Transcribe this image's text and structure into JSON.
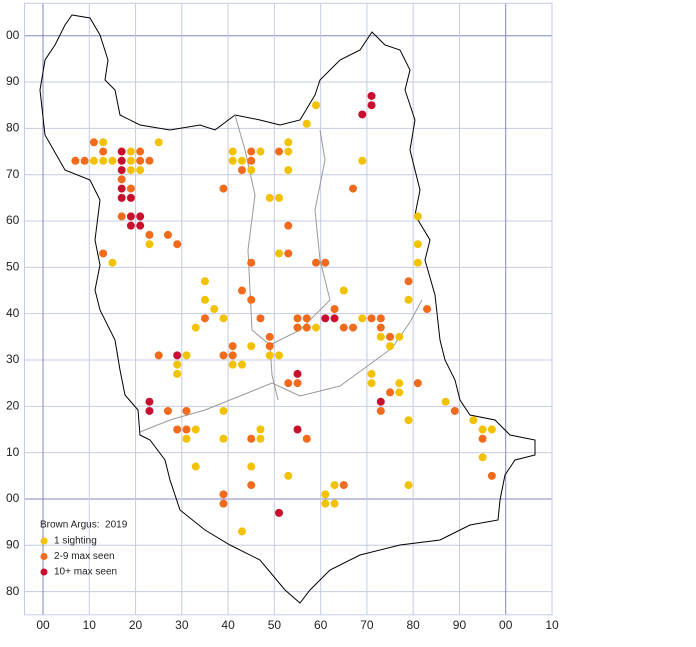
{
  "chart_data": {
    "type": "scatter",
    "title": "Brown Argus:  2019",
    "xlim": [
      -4,
      110
    ],
    "ylim": [
      75,
      207
    ],
    "xticks": [
      {
        "value": 0,
        "label": "00"
      },
      10,
      20,
      30,
      40,
      50,
      60,
      70,
      80,
      90,
      {
        "value": 100,
        "label": "00"
      },
      {
        "value": 110,
        "label": "10"
      }
    ],
    "yticks": [
      80,
      90,
      {
        "value": 100,
        "label": "00"
      },
      {
        "value": 110,
        "label": "10"
      },
      {
        "value": 120,
        "label": "20"
      },
      {
        "value": 130,
        "label": "30"
      },
      {
        "value": 140,
        "label": "40"
      },
      {
        "value": 150,
        "label": "50"
      },
      {
        "value": 160,
        "label": "60"
      },
      {
        "value": 170,
        "label": "70"
      },
      {
        "value": 180,
        "label": "80"
      },
      {
        "value": 190,
        "label": "90"
      },
      {
        "value": 200,
        "label": "00"
      }
    ],
    "grid": true,
    "legend": "bottom-left",
    "series": [
      {
        "name": "1 sighting",
        "color": "#f2c200",
        "x": [
          59,
          57,
          13,
          25,
          11,
          13,
          15,
          19,
          19,
          19,
          21,
          41,
          41,
          43,
          45,
          47,
          53,
          53,
          53,
          49,
          51,
          69,
          81,
          81,
          81,
          51,
          15,
          23,
          35,
          35,
          37,
          39,
          33,
          65,
          55,
          59,
          69,
          73,
          77,
          75,
          79,
          41,
          43,
          45,
          49,
          51,
          29,
          29,
          31,
          71,
          71,
          77,
          77,
          79,
          87,
          93,
          95,
          97,
          95,
          39,
          39,
          47,
          47,
          31,
          33,
          33,
          45,
          53,
          63,
          61,
          61,
          63,
          79,
          43
        ],
        "values": [
          185,
          181,
          177,
          177,
          173,
          173,
          173,
          175,
          173,
          171,
          171,
          175,
          173,
          173,
          171,
          175,
          177,
          175,
          171,
          165,
          165,
          173,
          161,
          155,
          151,
          153,
          151,
          155,
          147,
          143,
          141,
          139,
          137,
          145,
          137,
          137,
          139,
          135,
          135,
          133,
          143,
          129,
          129,
          133,
          131,
          131,
          129,
          127,
          131,
          127,
          125,
          125,
          123,
          117,
          121,
          117,
          115,
          115,
          109,
          119,
          113,
          115,
          113,
          113,
          115,
          107,
          107,
          105,
          103,
          101,
          99,
          99,
          103,
          93
        ]
      },
      {
        "name": "2-9 max seen",
        "color": "#f26a1b",
        "x": [
          11,
          13,
          7,
          9,
          21,
          23,
          21,
          17,
          19,
          17,
          23,
          27,
          29,
          13,
          45,
          45,
          43,
          51,
          39,
          67,
          53,
          53,
          59,
          61,
          45,
          79,
          83,
          43,
          45,
          35,
          47,
          55,
          57,
          55,
          57,
          63,
          65,
          67,
          71,
          73,
          73,
          75,
          49,
          49,
          41,
          41,
          39,
          25,
          53,
          55,
          81,
          75,
          73,
          27,
          31,
          29,
          31,
          45,
          57,
          89,
          95,
          97,
          45,
          65,
          39,
          39
        ],
        "values": [
          177,
          175,
          173,
          173,
          175,
          173,
          173,
          169,
          167,
          161,
          157,
          157,
          155,
          153,
          175,
          173,
          171,
          175,
          167,
          167,
          159,
          153,
          151,
          151,
          151,
          147,
          141,
          145,
          143,
          139,
          139,
          139,
          139,
          137,
          137,
          141,
          137,
          137,
          139,
          139,
          137,
          135,
          135,
          133,
          133,
          131,
          131,
          131,
          125,
          125,
          125,
          123,
          119,
          119,
          119,
          115,
          115,
          113,
          113,
          119,
          113,
          105,
          103,
          103,
          101,
          99
        ]
      },
      {
        "name": "10+ max seen",
        "color": "#c8102e",
        "x": [
          71,
          71,
          69,
          17,
          17,
          17,
          17,
          17,
          19,
          19,
          21,
          19,
          21,
          29,
          61,
          63,
          55,
          23,
          23,
          73,
          55,
          51
        ],
        "values": [
          187,
          185,
          183,
          175,
          173,
          171,
          167,
          165,
          165,
          161,
          161,
          159,
          159,
          131,
          139,
          139,
          127,
          121,
          119,
          121,
          115,
          97
        ]
      }
    ]
  }
}
